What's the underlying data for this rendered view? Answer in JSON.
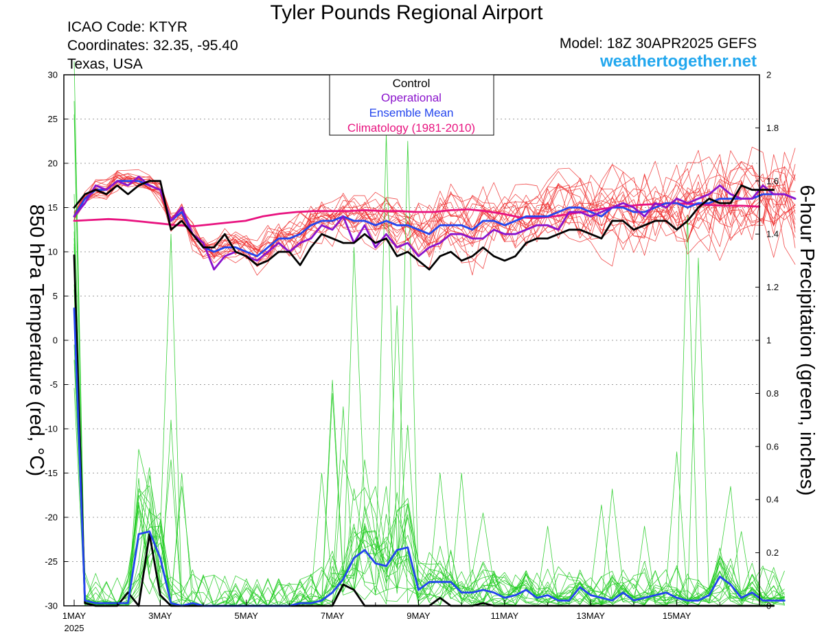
{
  "header": {
    "title": "Tyler Pounds Regional Airport",
    "icao": "ICAO Code: KTYR",
    "coordinates": "Coordinates: 32.35, -95.40",
    "region": "Texas, USA",
    "model": "Model: 18Z 30APR2025 GEFS",
    "website": "weathertogether.net"
  },
  "chart_data": {
    "type": "line",
    "x_unit": "days from 1MAY 2025 00Z",
    "xlim": [
      0,
      15.92
    ],
    "x_ticks": [
      {
        "x": 0,
        "label": "1MAY",
        "sublabel": "2025"
      },
      {
        "x": 2,
        "label": "3MAY"
      },
      {
        "x": 4,
        "label": "5MAY"
      },
      {
        "x": 6,
        "label": "7MAY"
      },
      {
        "x": 8,
        "label": "9MAY"
      },
      {
        "x": 10,
        "label": "11MAY"
      },
      {
        "x": 12,
        "label": "13MAY"
      },
      {
        "x": 14,
        "label": "15MAY"
      }
    ],
    "y_left": {
      "label": "850 hPa Temperature (red, °C)",
      "min": -30,
      "max": 30,
      "ticks": [
        30,
        25,
        20,
        15,
        10,
        5,
        0,
        -5,
        -10,
        -15,
        -20,
        -25,
        -30
      ]
    },
    "y_right": {
      "label": "6-hour Precipitation (green, inches)",
      "min": 0,
      "max": 2,
      "ticks": [
        2,
        1.8,
        1.6,
        1.4,
        1.2,
        1,
        0.8,
        0.6,
        0.4,
        0.2,
        0
      ]
    },
    "grid": true,
    "legend": {
      "position": "top-center",
      "entries": [
        {
          "label": "Control",
          "color": "#000000"
        },
        {
          "label": "Operational",
          "color": "#8a12cc"
        },
        {
          "label": "Ensemble Mean",
          "color": "#2244ee"
        },
        {
          "label": "Climatology (1981-2010)",
          "color": "#e8127f"
        }
      ]
    },
    "series": {
      "temp_control": [
        15,
        16.5,
        17,
        16.5,
        17.5,
        16.5,
        17.5,
        18,
        18,
        12.5,
        13.5,
        12,
        10.5,
        10.5,
        12,
        10,
        9.5,
        8.5,
        9,
        10,
        10,
        8.5,
        10.5,
        12,
        11.5,
        11,
        11,
        12,
        11,
        11.5,
        9.5,
        10,
        9,
        8,
        9.5,
        10,
        9,
        9.5,
        10.5,
        9.5,
        9,
        9.5,
        11,
        11.5,
        11.5,
        12,
        12.5,
        12.5,
        12,
        11.5,
        13.5,
        13.5,
        12.5,
        13,
        13.5,
        13.5,
        12.5,
        13.5,
        15,
        16,
        15.5,
        15.5,
        17.5,
        17,
        17,
        17
      ],
      "temp_operational": [
        14,
        15.5,
        17.5,
        17,
        18,
        17.5,
        18.5,
        17.5,
        17,
        13.5,
        15,
        12,
        11,
        8,
        9.5,
        10,
        9.5,
        9,
        10,
        11,
        10,
        11,
        11.5,
        13,
        12.5,
        14,
        11,
        13,
        10.5,
        12,
        10.5,
        11,
        9.5,
        10.5,
        11,
        12,
        12,
        11.5,
        11.5,
        12.5,
        12,
        12,
        12.5,
        13,
        13,
        12.5,
        14.5,
        14.5,
        14,
        14.5,
        15,
        15.5,
        15,
        14,
        15.5,
        15,
        16,
        15.5,
        16,
        16.5,
        17.5,
        16.5,
        16,
        16,
        17.5,
        16.5,
        16.5,
        16
      ],
      "temp_mean": [
        14,
        16,
        17,
        17,
        18,
        18,
        18,
        17.5,
        17,
        13.5,
        14.5,
        12,
        10.5,
        10,
        10.5,
        10.5,
        10,
        9.5,
        10.5,
        11.5,
        11.5,
        12,
        13,
        13.5,
        13.5,
        14,
        13.5,
        13.5,
        13,
        13.5,
        13,
        13,
        12.5,
        12,
        13,
        13,
        13,
        12.5,
        13.5,
        13.5,
        13,
        13.5,
        14,
        14,
        14,
        14.5,
        15,
        15,
        14.5,
        14,
        15,
        15,
        14.5,
        14.5,
        15,
        15.5,
        15.5,
        15,
        15.5,
        15.5,
        16,
        16,
        16,
        16,
        16.5,
        16.5,
        16.5,
        16
      ],
      "temp_climatology": [
        13.5,
        13.6,
        13.7,
        13.6,
        13.4,
        13.2,
        13.0,
        12.9,
        13.1,
        13.3,
        13.5,
        14.0,
        14.3,
        14.5,
        14.6,
        14.6,
        14.6,
        14.7,
        14.6,
        14.6,
        14.5,
        14.5,
        14.7,
        14.8,
        14.6,
        14.3,
        13.9,
        13.8,
        14.0,
        14.3,
        14.6,
        14.9,
        15.1,
        15.3,
        15.4,
        15.5,
        15.4,
        15.3,
        15.2,
        15.2,
        15.1
      ],
      "precip_mean": [
        1.12,
        0.02,
        0.01,
        0.01,
        0.01,
        0.01,
        0.27,
        0.28,
        0.18,
        0.01,
        0,
        0.01,
        0,
        0,
        0,
        0,
        0,
        0,
        0,
        0,
        0,
        0.01,
        0.01,
        0.02,
        0.05,
        0.1,
        0.18,
        0.21,
        0.16,
        0.15,
        0.21,
        0.22,
        0.06,
        0.09,
        0.09,
        0.09,
        0.05,
        0.05,
        0.06,
        0.05,
        0.03,
        0.04,
        0.06,
        0.03,
        0.04,
        0.02,
        0.02,
        0.07,
        0.04,
        0.03,
        0.02,
        0.05,
        0.02,
        0.03,
        0.04,
        0.05,
        0.03,
        0.02,
        0.02,
        0.04,
        0.11,
        0.08,
        0.03,
        0.05,
        0.02,
        0.02,
        0.02
      ],
      "precip_control": [
        1.32,
        0.01,
        0,
        0,
        0,
        0.05,
        0,
        0.27,
        0.04,
        0,
        0,
        0,
        0,
        0,
        0,
        0,
        0,
        0,
        0,
        0,
        0,
        0,
        0,
        0,
        0,
        0.08,
        0.06,
        0,
        0,
        0,
        0,
        0,
        0,
        0,
        0.03,
        0,
        0,
        0,
        0.01,
        0,
        0,
        0,
        0,
        0,
        0,
        0,
        0,
        0,
        0,
        0,
        0,
        0,
        0,
        0,
        0,
        0,
        0,
        0,
        0,
        0,
        0,
        0,
        0,
        0,
        0,
        0
      ],
      "precip_member_peaks": [
        [
          0,
          2.05
        ],
        [
          0,
          1.9
        ],
        [
          0,
          1.85
        ],
        [
          0,
          1.55
        ],
        [
          0,
          1.35
        ],
        [
          0,
          1.3
        ],
        [
          2,
          0.35
        ],
        [
          2,
          0.3
        ],
        [
          2,
          0.26
        ],
        [
          2.25,
          0.7
        ],
        [
          2.25,
          0.55
        ],
        [
          2.25,
          1.4
        ],
        [
          2.5,
          0.5
        ],
        [
          2.5,
          0.45
        ],
        [
          5.75,
          0.5
        ],
        [
          6,
          0.8
        ],
        [
          6,
          0.85
        ],
        [
          6.25,
          0.75
        ],
        [
          6.25,
          0.55
        ],
        [
          6.5,
          1.35
        ],
        [
          6.75,
          0.55
        ],
        [
          7,
          0.45
        ],
        [
          7.25,
          0.45
        ],
        [
          7.25,
          1.78
        ],
        [
          7.5,
          1.13
        ],
        [
          7.75,
          0.68
        ],
        [
          7.75,
          1.75
        ],
        [
          8.5,
          0.5
        ],
        [
          9,
          0.5
        ],
        [
          9.5,
          0.35
        ],
        [
          11,
          0.3
        ],
        [
          12.25,
          0.38
        ],
        [
          12.5,
          0.44
        ],
        [
          13.25,
          0.3
        ],
        [
          14,
          0.58
        ],
        [
          14.25,
          1.47
        ],
        [
          14.5,
          1.31
        ],
        [
          15.25,
          0.45
        ],
        [
          15.5,
          0.28
        ]
      ]
    }
  }
}
